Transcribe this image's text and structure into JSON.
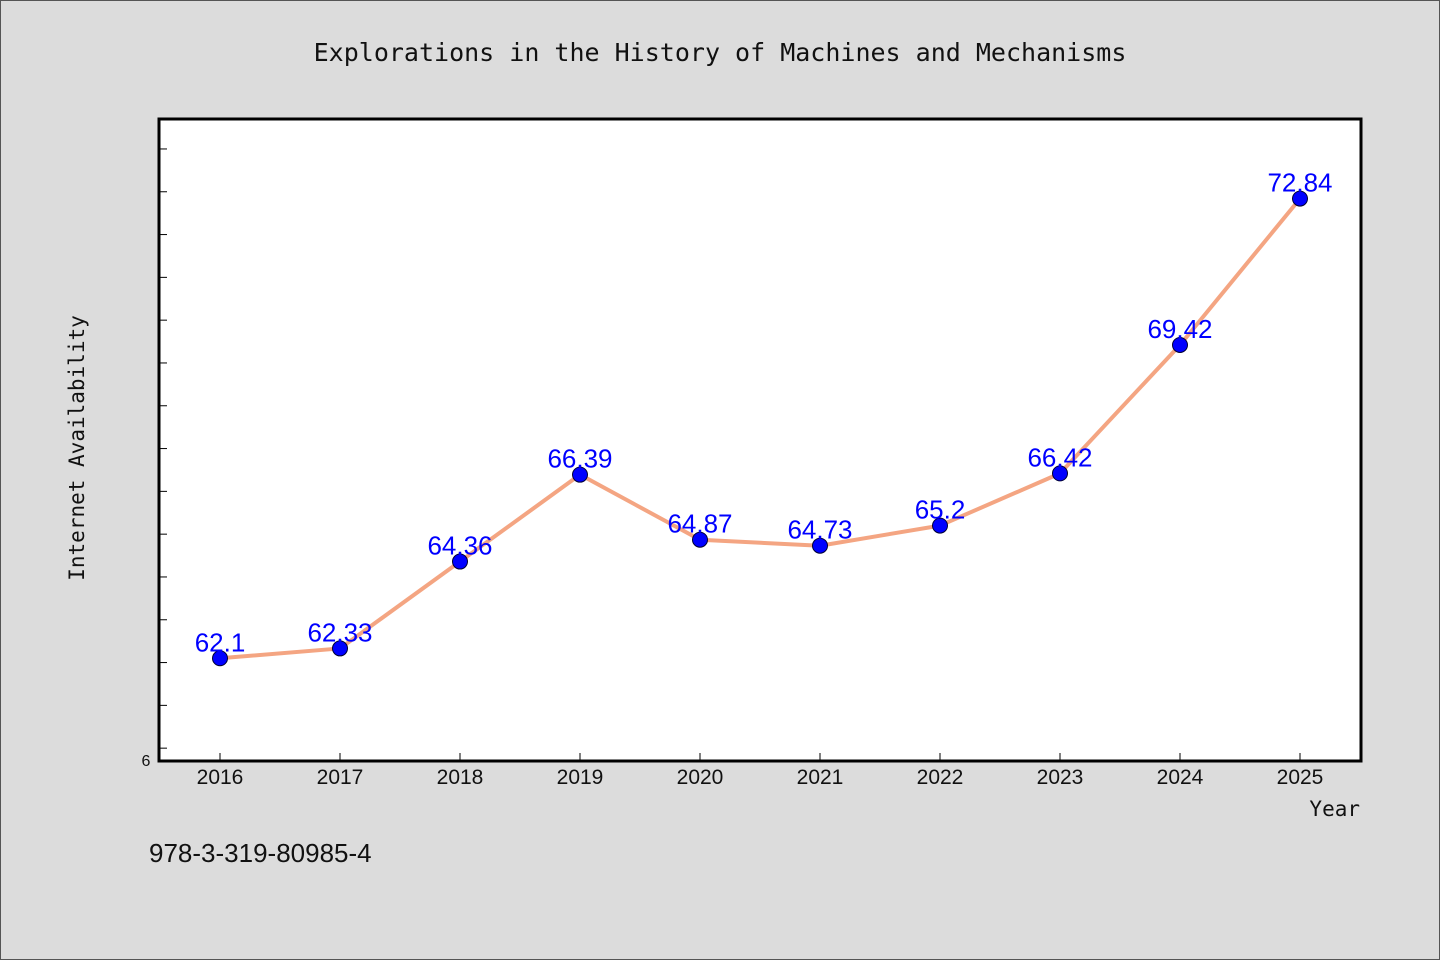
{
  "chart_data": {
    "type": "line",
    "title": "Explorations in the History of Machines and Mechanisms",
    "xlabel": "Year",
    "ylabel": "Internet Availability",
    "categories": [
      "2016",
      "2017",
      "2018",
      "2019",
      "2020",
      "2021",
      "2022",
      "2023",
      "2024",
      "2025"
    ],
    "series": [
      {
        "values": [
          62.1,
          62.33,
          64.36,
          66.39,
          64.87,
          64.73,
          65.2,
          66.42,
          69.42,
          72.84
        ],
        "data_labels": [
          "62.1",
          "62.33",
          "64.36",
          "66.39",
          "64.87",
          "64.73",
          "65.2",
          "66.42",
          "69.42",
          "72.84"
        ],
        "line_color": "#f4a582",
        "marker_color": "#0000ff"
      }
    ],
    "y_tick_labels": [
      "6"
    ],
    "ylim": [
      59.7,
      74.7
    ],
    "grid": false,
    "legend": "none"
  },
  "footer": {
    "isbn": "978-3-319-80985-4"
  },
  "colors": {
    "background": "#dcdcdc",
    "plot_background": "#ffffff",
    "line": "#f4a582",
    "marker": "#0000ff",
    "data_label": "#0000ff"
  }
}
